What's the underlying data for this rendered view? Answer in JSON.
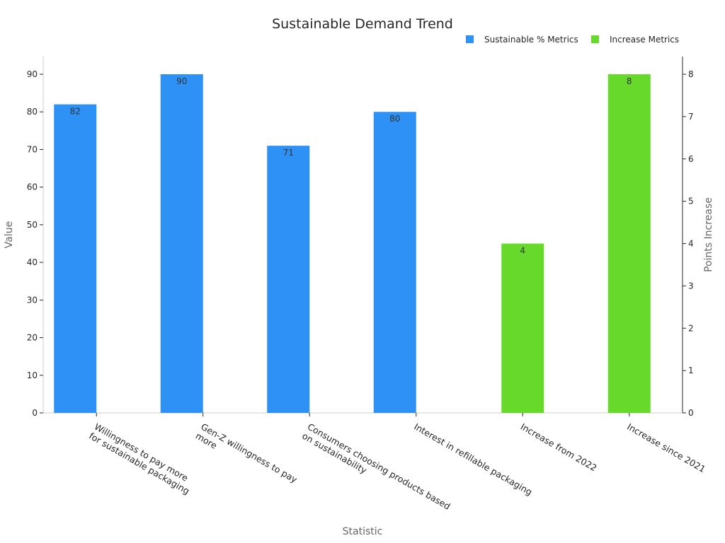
{
  "chart_data": {
    "type": "bar",
    "title": "Sustainable Demand Trend",
    "xlabel": "Statistic",
    "ylabel": "Value",
    "y2label": "Points Increase",
    "categories": [
      "Willingness to pay more\nfor sustainable packaging",
      "Gen-Z willingness to pay\nmore",
      "Consumers choosing products based\non sustainability",
      "Interest in refillable packaging",
      "Increase from 2022",
      "Increase since 2021"
    ],
    "series": [
      {
        "name": "Sustainable % Metrics",
        "axis": "left",
        "color": "#2d91f5",
        "values": [
          82,
          90,
          71,
          80,
          null,
          null
        ],
        "labels": [
          "82",
          "90",
          "71",
          "80",
          null,
          null
        ]
      },
      {
        "name": "Increase Metrics",
        "axis": "right",
        "color": "#66d92a",
        "values": [
          null,
          null,
          null,
          null,
          4,
          8
        ],
        "labels": [
          null,
          null,
          null,
          null,
          "4",
          "8"
        ]
      }
    ],
    "ylim": [
      0,
      90
    ],
    "yticks": [
      0,
      10,
      20,
      30,
      40,
      50,
      60,
      70,
      80,
      90
    ],
    "y2lim": [
      0,
      8
    ],
    "y2ticks": [
      0,
      1,
      2,
      3,
      4,
      5,
      6,
      7,
      8
    ],
    "legend": "top-right",
    "grid": false
  }
}
